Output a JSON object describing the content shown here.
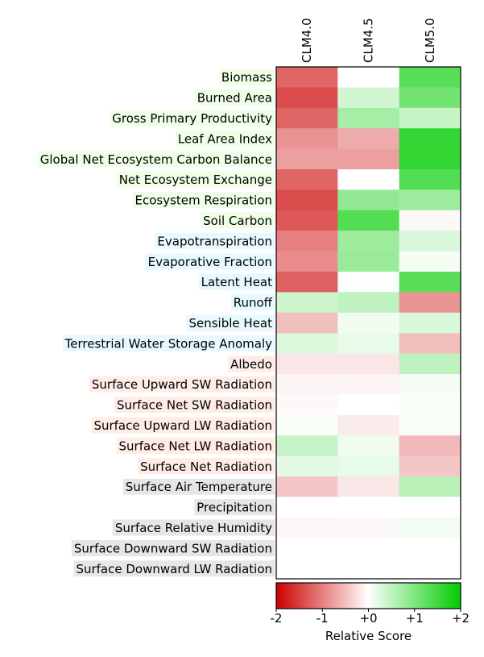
{
  "chart_data": {
    "type": "heatmap",
    "columns": [
      "CLM4.0",
      "CLM4.5",
      "CLM5.0"
    ],
    "rows": [
      {
        "label": "Biomass",
        "group_color": "#eeffe6"
      },
      {
        "label": "Burned Area",
        "group_color": "#eeffe6"
      },
      {
        "label": "Gross Primary Productivity",
        "group_color": "#eeffe6"
      },
      {
        "label": "Leaf Area Index",
        "group_color": "#eeffe6"
      },
      {
        "label": "Global Net Ecosystem Carbon Balance",
        "group_color": "#eeffe6"
      },
      {
        "label": "Net Ecosystem Exchange",
        "group_color": "#eeffe6"
      },
      {
        "label": "Ecosystem Respiration",
        "group_color": "#eeffe6"
      },
      {
        "label": "Soil Carbon",
        "group_color": "#eeffe6"
      },
      {
        "label": "Evapotranspiration",
        "group_color": "#e6f9ff"
      },
      {
        "label": "Evaporative Fraction",
        "group_color": "#e6f9ff"
      },
      {
        "label": "Latent Heat",
        "group_color": "#e6f9ff"
      },
      {
        "label": "Runoff",
        "group_color": "#e6f9ff"
      },
      {
        "label": "Sensible Heat",
        "group_color": "#e6f9ff"
      },
      {
        "label": "Terrestrial Water Storage Anomaly",
        "group_color": "#e6f9ff"
      },
      {
        "label": "Albedo",
        "group_color": "#ffece6"
      },
      {
        "label": "Surface Upward SW Radiation",
        "group_color": "#ffece6"
      },
      {
        "label": "Surface Net SW Radiation",
        "group_color": "#ffece6"
      },
      {
        "label": "Surface Upward LW Radiation",
        "group_color": "#ffece6"
      },
      {
        "label": "Surface Net LW Radiation",
        "group_color": "#ffece6"
      },
      {
        "label": "Surface Net Radiation",
        "group_color": "#ffece6"
      },
      {
        "label": "Surface Air Temperature",
        "group_color": "#e6e6e6"
      },
      {
        "label": "Precipitation",
        "group_color": "#e6e6e6"
      },
      {
        "label": "Surface Relative Humidity",
        "group_color": "#e6e6e6"
      },
      {
        "label": "Surface Downward SW Radiation",
        "group_color": "#e6e6e6"
      },
      {
        "label": "Surface Downward LW Radiation",
        "group_color": "#e6e6e6"
      }
    ],
    "values": [
      [
        -1.2,
        0.0,
        1.3
      ],
      [
        -1.4,
        0.35,
        1.1
      ],
      [
        -1.2,
        0.7,
        0.45
      ],
      [
        -0.85,
        -0.65,
        1.6
      ],
      [
        -0.75,
        -0.75,
        1.6
      ],
      [
        -1.2,
        0.0,
        1.35
      ],
      [
        -1.4,
        0.85,
        0.75
      ],
      [
        -1.3,
        1.35,
        -0.05
      ],
      [
        -1.0,
        0.75,
        0.3
      ],
      [
        -0.9,
        0.8,
        0.08
      ],
      [
        -1.25,
        0.03,
        1.3
      ],
      [
        0.4,
        0.5,
        -0.85
      ],
      [
        -0.5,
        0.12,
        0.3
      ],
      [
        0.28,
        0.18,
        -0.5
      ],
      [
        -0.2,
        -0.2,
        0.5
      ],
      [
        -0.08,
        -0.08,
        0.08
      ],
      [
        -0.05,
        0.0,
        0.05
      ],
      [
        0.05,
        -0.15,
        0.05
      ],
      [
        0.45,
        0.12,
        -0.55
      ],
      [
        0.22,
        0.18,
        -0.45
      ],
      [
        -0.45,
        -0.18,
        0.55
      ],
      [
        0.0,
        0.0,
        0.0
      ],
      [
        -0.07,
        -0.05,
        0.1
      ],
      [
        null,
        null,
        null
      ],
      [
        null,
        null,
        null
      ]
    ],
    "colorbar": {
      "label": "Relative Score",
      "range": [
        -2,
        2
      ],
      "ticks": [
        "-2",
        "-1",
        "+0",
        "+1",
        "+2"
      ],
      "colors": {
        "min": "#cc0000",
        "mid": "#ffffff",
        "max": "#00cc00"
      }
    }
  }
}
